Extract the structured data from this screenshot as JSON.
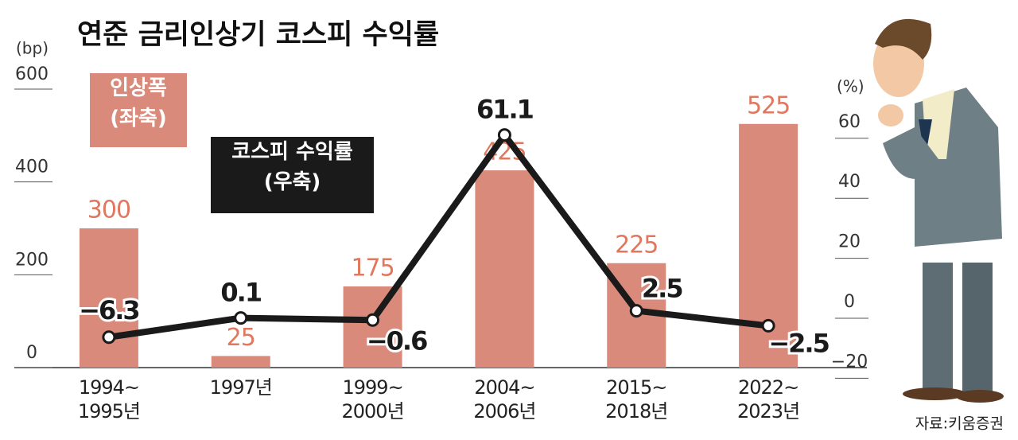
{
  "chart_data": {
    "type": "bar_line",
    "title": "연준 금리인상기 코스피 수익률",
    "y_label": "(bp)",
    "y2_label": "(%)",
    "categories": [
      "1994~\n1995년",
      "1997년",
      "1999~\n2000년",
      "2004~\n2006년",
      "2015~\n2018년",
      "2022~\n2023년"
    ],
    "series": [
      {
        "name": "인상폭\n(좌축)",
        "type": "bar",
        "color": "#d98a7a",
        "label_color": "#e0775f",
        "values": [
          300,
          25,
          175,
          425,
          225,
          525
        ]
      },
      {
        "name": "코스피 수익률\n(우축)",
        "type": "line",
        "axis": "y2",
        "color": "#1a1a1a",
        "values": [
          -6.3,
          0.1,
          -0.6,
          61.1,
          2.5,
          -2.5
        ],
        "value_labels": [
          "−6.3",
          "0.1",
          "−0.6",
          "61.1",
          "2.5",
          "−2.5"
        ]
      }
    ],
    "ylim": [
      0,
      600
    ],
    "yticks": [
      0,
      200,
      400,
      600
    ],
    "y2lim": [
      -20,
      60
    ],
    "y2ticks": [
      {
        "value": -20,
        "label": "−20"
      },
      0,
      20,
      40,
      60
    ],
    "grid": false,
    "source": "자료:키움증권"
  }
}
